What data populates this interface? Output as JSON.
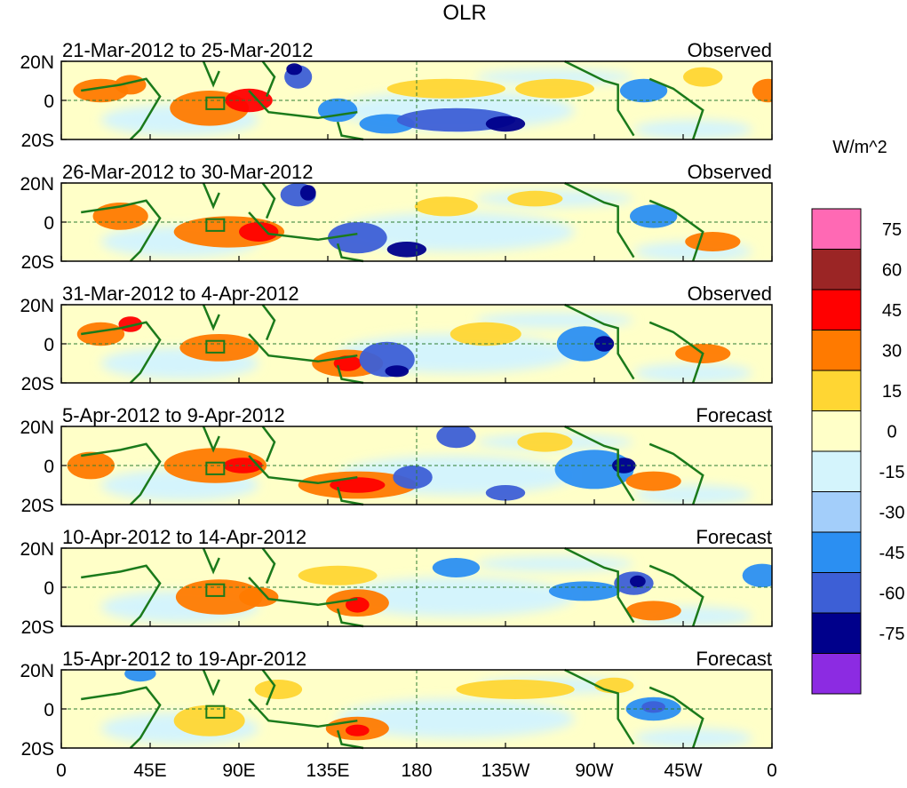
{
  "chart_data": {
    "type": "heatmap",
    "title": "OLR",
    "units_label": "W/m^2",
    "y_ticks": [
      "20N",
      "0",
      "20S"
    ],
    "x_ticks": [
      "0",
      "45E",
      "90E",
      "135E",
      "180",
      "135W",
      "90W",
      "45W",
      "0"
    ],
    "x_range_deg": [
      0,
      360
    ],
    "y_range_deg": [
      -20,
      20
    ],
    "panels": [
      {
        "period": "21-Mar-2012 to 25-Mar-2012",
        "kind": "Observed"
      },
      {
        "period": "26-Mar-2012 to 30-Mar-2012",
        "kind": "Observed"
      },
      {
        "period": "31-Mar-2012 to 4-Apr-2012",
        "kind": "Observed"
      },
      {
        "period": "5-Apr-2012 to 9-Apr-2012",
        "kind": "Forecast"
      },
      {
        "period": "10-Apr-2012 to 14-Apr-2012",
        "kind": "Forecast"
      },
      {
        "period": "15-Apr-2012 to 19-Apr-2012",
        "kind": "Forecast"
      }
    ],
    "colorbar": {
      "levels": [
        "75",
        "60",
        "45",
        "30",
        "15",
        "0",
        "-15",
        "-30",
        "-45",
        "-60",
        "-75"
      ],
      "colors": [
        "#ff69b4",
        "#9b2525",
        "#ff0000",
        "#ff7a00",
        "#ffd633",
        "#ffffc8",
        "#d4f4fc",
        "#a3cefa",
        "#2b8ff2",
        "#3d5fd6",
        "#00008b",
        "#8c2be2"
      ]
    }
  }
}
